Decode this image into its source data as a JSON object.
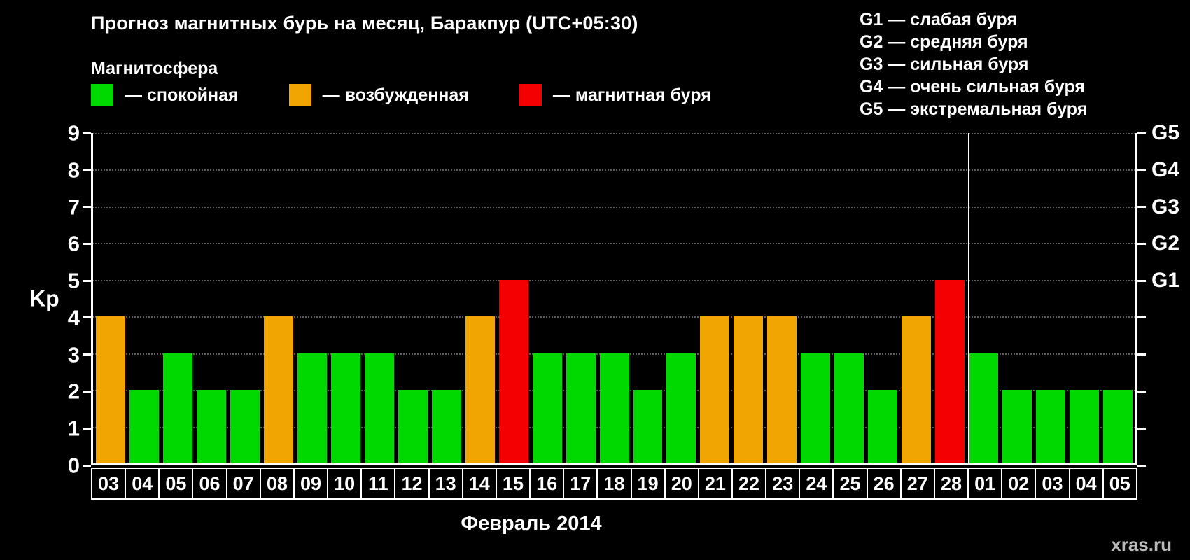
{
  "title": "Прогноз магнитных бурь на месяц, Баракпур (UTC+05:30)",
  "magnetosphere": {
    "heading": "Магнитосфера",
    "items": [
      {
        "name": "quiet",
        "label": "— спокойная",
        "color": "#00d900"
      },
      {
        "name": "excited",
        "label": "— возбужденная",
        "color": "#f0a500"
      },
      {
        "name": "storm",
        "label": "— магнитная буря",
        "color": "#f50000"
      }
    ]
  },
  "g_scale_legend": [
    "G1 — слабая буря",
    "G2 — средняя буря",
    "G3 — сильная буря",
    "G4 — очень сильная буря",
    "G5 — экстремальная буря"
  ],
  "chart_data": {
    "type": "bar",
    "title": "Прогноз магнитных бурь на месяц, Баракпур (UTC+05:30)",
    "ylabel": "Kp",
    "xlabel": "Февраль 2014",
    "ylim": [
      0,
      9
    ],
    "yticks": [
      0,
      1,
      2,
      3,
      4,
      5,
      6,
      7,
      8,
      9
    ],
    "right_axis_ticks": [
      {
        "label": "G1",
        "value": 5
      },
      {
        "label": "G2",
        "value": 6
      },
      {
        "label": "G3",
        "value": 7
      },
      {
        "label": "G4",
        "value": 8
      },
      {
        "label": "G5",
        "value": 9
      }
    ],
    "grid": "horizontal dotted",
    "legend_position": "top",
    "categories": [
      "03",
      "04",
      "05",
      "06",
      "07",
      "08",
      "09",
      "10",
      "11",
      "12",
      "13",
      "14",
      "15",
      "16",
      "17",
      "18",
      "19",
      "20",
      "21",
      "22",
      "23",
      "24",
      "25",
      "26",
      "27",
      "28",
      "01",
      "02",
      "03",
      "04",
      "05"
    ],
    "values": [
      4,
      2,
      3,
      2,
      2,
      4,
      3,
      3,
      3,
      2,
      2,
      4,
      5,
      3,
      3,
      3,
      2,
      3,
      4,
      4,
      4,
      3,
      3,
      2,
      4,
      5,
      3,
      2,
      2,
      2,
      2
    ],
    "statuses": [
      "excited",
      "quiet",
      "quiet",
      "quiet",
      "quiet",
      "excited",
      "quiet",
      "quiet",
      "quiet",
      "quiet",
      "quiet",
      "excited",
      "storm",
      "quiet",
      "quiet",
      "quiet",
      "quiet",
      "quiet",
      "excited",
      "excited",
      "excited",
      "quiet",
      "quiet",
      "quiet",
      "excited",
      "storm",
      "quiet",
      "quiet",
      "quiet",
      "quiet",
      "quiet"
    ],
    "month_separator_after_index": 25
  },
  "watermark": "xras.ru"
}
